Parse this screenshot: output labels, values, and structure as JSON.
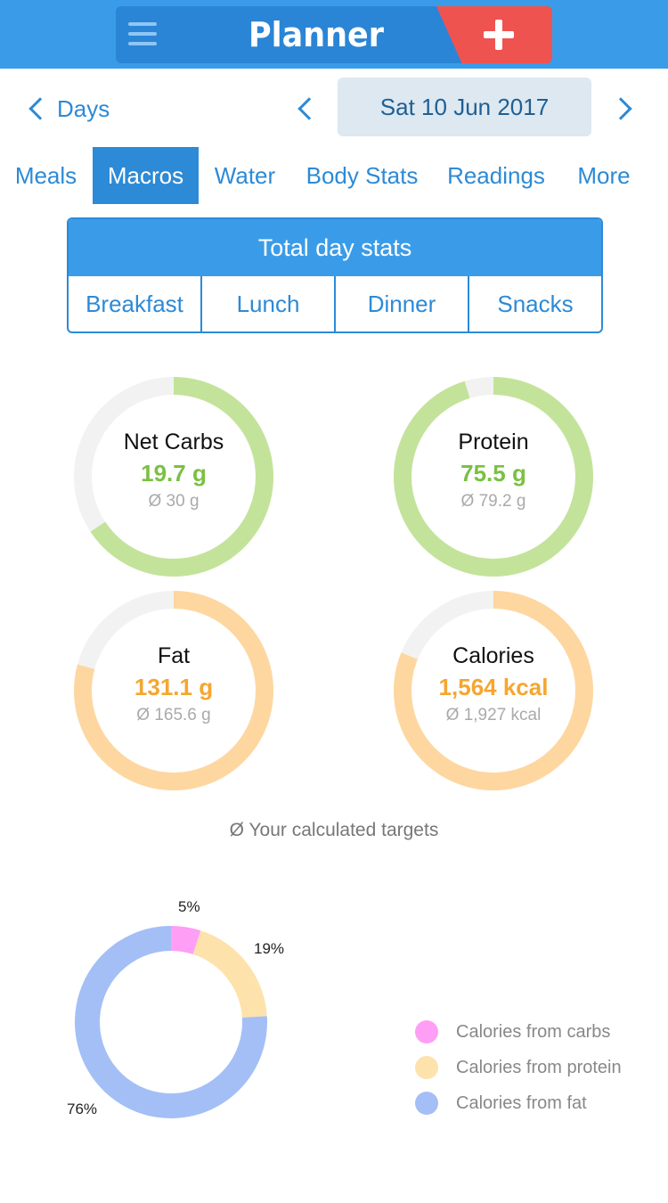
{
  "header": {
    "title": "Planner",
    "menu_icon": "hamburger-menu-icon",
    "add_icon": "plus-icon",
    "colors": {
      "bar": "#3a9ce8",
      "pill": "#2b85d6",
      "add": "#ef5350"
    }
  },
  "date_nav": {
    "days_label": "Days",
    "date": "Sat 10 Jun 2017"
  },
  "tabs": [
    {
      "label": "Meals",
      "active": false
    },
    {
      "label": "Macros",
      "active": true
    },
    {
      "label": "Water",
      "active": false
    },
    {
      "label": "Body Stats",
      "active": false
    },
    {
      "label": "Readings",
      "active": false
    },
    {
      "label": "More",
      "active": false
    }
  ],
  "segment": {
    "top": "Total day stats",
    "items": [
      "Breakfast",
      "Lunch",
      "Dinner",
      "Snacks"
    ]
  },
  "macros": {
    "net_carbs": {
      "label": "Net Carbs",
      "value": "19.7 g",
      "target": "Ø 30 g",
      "progress": 0.657,
      "color": "#c3e39a"
    },
    "protein": {
      "label": "Protein",
      "value": "75.5 g",
      "target": "Ø 79.2 g",
      "progress": 0.953,
      "color": "#c3e39a"
    },
    "fat": {
      "label": "Fat",
      "value": "131.1 g",
      "target": "Ø 165.6 g",
      "progress": 0.792,
      "color": "#fed7a0"
    },
    "calories": {
      "label": "Calories",
      "value": "1,564 kcal",
      "target": "Ø 1,927 kcal",
      "progress": 0.812,
      "color": "#fed7a0"
    }
  },
  "targets_note": "Ø Your calculated targets",
  "chart_data": {
    "type": "pie",
    "categories": [
      "Calories from carbs",
      "Calories from protein",
      "Calories from fat"
    ],
    "values": [
      5,
      19,
      76
    ],
    "labels": [
      "5%",
      "19%",
      "76%"
    ],
    "colors": [
      "#ff9ef5",
      "#fee2ab",
      "#a4bff6"
    ],
    "legend": "right"
  }
}
